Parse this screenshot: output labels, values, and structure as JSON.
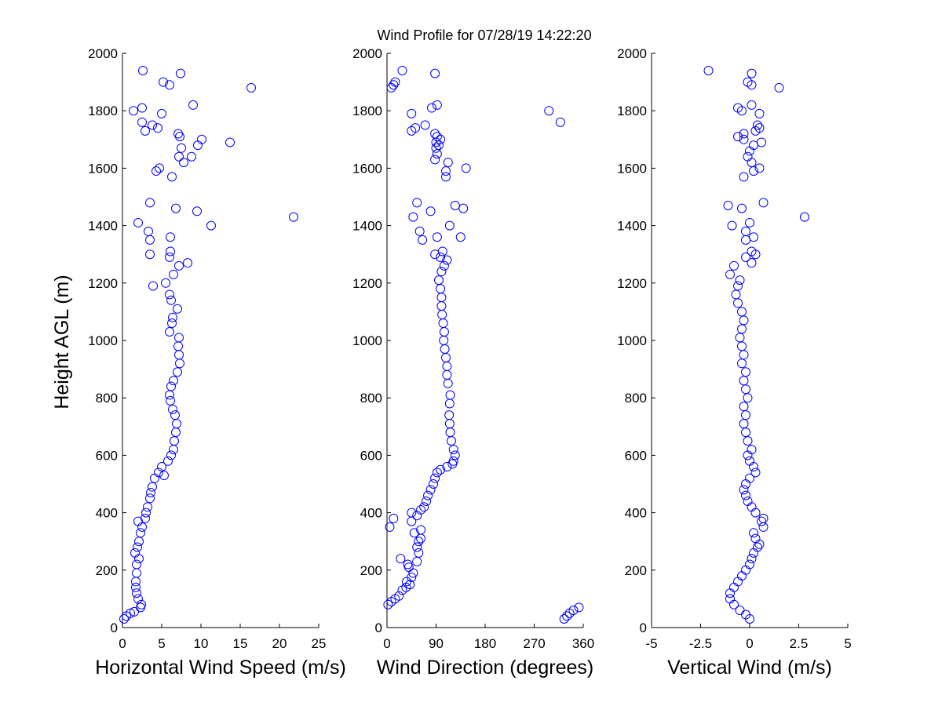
{
  "page": {
    "title": "Wind Profile for  07/28/19 14:22:20",
    "ylabel": "Height AGL (m)"
  },
  "colors": {
    "marker": "#0000ff",
    "axis": "#000000",
    "background": "#ffffff"
  },
  "chart_data": [
    {
      "type": "scatter",
      "title": "Wind Profile for  07/28/19 14:22:20",
      "xlabel": "Horizontal Wind Speed (m/s)",
      "ylabel": "Height AGL (m)",
      "xlim": [
        0,
        25
      ],
      "ylim": [
        0,
        2000
      ],
      "xticks": [
        0,
        5,
        10,
        15,
        20,
        25
      ],
      "xtick_labels": [
        "0",
        "5",
        "10",
        "15",
        "20",
        "25"
      ],
      "yticks": [
        0,
        200,
        400,
        600,
        800,
        1000,
        1200,
        1400,
        1600,
        1800,
        2000
      ],
      "ytick_labels": [
        "0",
        "200",
        "400",
        "600",
        "800",
        "1000",
        "1200",
        "1400",
        "1600",
        "1800",
        "2000"
      ],
      "grid": false,
      "marker": "open-circle",
      "points": [
        [
          0.2,
          30
        ],
        [
          0.5,
          40
        ],
        [
          1.0,
          50
        ],
        [
          1.5,
          55
        ],
        [
          2.3,
          70
        ],
        [
          2.4,
          80
        ],
        [
          2.0,
          100
        ],
        [
          1.8,
          120
        ],
        [
          1.7,
          140
        ],
        [
          1.7,
          160
        ],
        [
          1.8,
          190
        ],
        [
          1.8,
          220
        ],
        [
          2.1,
          240
        ],
        [
          1.6,
          260
        ],
        [
          1.9,
          280
        ],
        [
          2.1,
          300
        ],
        [
          2.3,
          330
        ],
        [
          2.5,
          350
        ],
        [
          2.0,
          370
        ],
        [
          2.9,
          380
        ],
        [
          3.0,
          400
        ],
        [
          3.2,
          420
        ],
        [
          3.5,
          450
        ],
        [
          3.6,
          470
        ],
        [
          3.8,
          490
        ],
        [
          4.1,
          520
        ],
        [
          4.6,
          540
        ],
        [
          5.0,
          560
        ],
        [
          5.3,
          530
        ],
        [
          5.8,
          580
        ],
        [
          6.2,
          600
        ],
        [
          6.5,
          620
        ],
        [
          6.6,
          650
        ],
        [
          6.8,
          680
        ],
        [
          6.9,
          710
        ],
        [
          6.7,
          740
        ],
        [
          6.4,
          760
        ],
        [
          6.1,
          790
        ],
        [
          6.0,
          810
        ],
        [
          6.2,
          840
        ],
        [
          6.5,
          860
        ],
        [
          7.0,
          890
        ],
        [
          7.3,
          920
        ],
        [
          7.2,
          950
        ],
        [
          7.1,
          980
        ],
        [
          7.2,
          1010
        ],
        [
          6.0,
          1030
        ],
        [
          6.3,
          1060
        ],
        [
          6.4,
          1080
        ],
        [
          7.0,
          1110
        ],
        [
          6.2,
          1140
        ],
        [
          6.0,
          1160
        ],
        [
          5.5,
          1200
        ],
        [
          6.5,
          1230
        ],
        [
          7.2,
          1260
        ],
        [
          8.3,
          1270
        ],
        [
          6.0,
          1290
        ],
        [
          6.1,
          1310
        ],
        [
          6.1,
          1360
        ],
        [
          3.5,
          1300
        ],
        [
          3.5,
          1350
        ],
        [
          3.3,
          1380
        ],
        [
          2.0,
          1410
        ],
        [
          11.3,
          1400
        ],
        [
          21.8,
          1430
        ],
        [
          9.5,
          1450
        ],
        [
          6.8,
          1460
        ],
        [
          3.5,
          1480
        ],
        [
          3.9,
          1190
        ],
        [
          6.3,
          1570
        ],
        [
          4.3,
          1590
        ],
        [
          4.7,
          1600
        ],
        [
          7.8,
          1620
        ],
        [
          7.2,
          1640
        ],
        [
          8.8,
          1640
        ],
        [
          7.5,
          1670
        ],
        [
          9.6,
          1680
        ],
        [
          13.7,
          1690
        ],
        [
          10.1,
          1700
        ],
        [
          7.3,
          1710
        ],
        [
          7.1,
          1720
        ],
        [
          2.9,
          1730
        ],
        [
          4.5,
          1740
        ],
        [
          2.5,
          1760
        ],
        [
          3.8,
          1750
        ],
        [
          5.0,
          1790
        ],
        [
          1.4,
          1800
        ],
        [
          2.5,
          1810
        ],
        [
          9.0,
          1820
        ],
        [
          16.4,
          1880
        ],
        [
          6.0,
          1890
        ],
        [
          5.2,
          1900
        ],
        [
          7.4,
          1930
        ],
        [
          2.6,
          1940
        ]
      ]
    },
    {
      "type": "scatter",
      "xlabel": "Wind Direction (degrees)",
      "ylabel": "",
      "xlim": [
        0,
        360
      ],
      "ylim": [
        0,
        2000
      ],
      "xticks": [
        0,
        90,
        180,
        270,
        360
      ],
      "xtick_labels": [
        "0",
        "90",
        "180",
        "270",
        "360"
      ],
      "yticks": [
        0,
        200,
        400,
        600,
        800,
        1000,
        1200,
        1400,
        1600,
        1800,
        2000
      ],
      "ytick_labels": [
        "0",
        "200",
        "400",
        "600",
        "800",
        "1000",
        "1200",
        "1400",
        "1600",
        "1800",
        "2000"
      ],
      "grid": false,
      "marker": "open-circle",
      "points": [
        [
          325,
          30
        ],
        [
          330,
          40
        ],
        [
          335,
          50
        ],
        [
          342,
          60
        ],
        [
          352,
          70
        ],
        [
          2,
          80
        ],
        [
          8,
          90
        ],
        [
          15,
          100
        ],
        [
          22,
          110
        ],
        [
          28,
          130
        ],
        [
          35,
          140
        ],
        [
          42,
          150
        ],
        [
          36,
          160
        ],
        [
          45,
          175
        ],
        [
          48,
          190
        ],
        [
          40,
          210
        ],
        [
          38,
          220
        ],
        [
          55,
          230
        ],
        [
          25,
          240
        ],
        [
          58,
          260
        ],
        [
          55,
          280
        ],
        [
          58,
          300
        ],
        [
          62,
          310
        ],
        [
          50,
          330
        ],
        [
          62,
          340
        ],
        [
          5,
          350
        ],
        [
          45,
          370
        ],
        [
          12,
          380
        ],
        [
          55,
          390
        ],
        [
          45,
          400
        ],
        [
          62,
          410
        ],
        [
          68,
          420
        ],
        [
          72,
          440
        ],
        [
          75,
          460
        ],
        [
          80,
          480
        ],
        [
          85,
          500
        ],
        [
          88,
          520
        ],
        [
          92,
          540
        ],
        [
          98,
          550
        ],
        [
          110,
          560
        ],
        [
          120,
          570
        ],
        [
          122,
          580
        ],
        [
          125,
          600
        ],
        [
          122,
          620
        ],
        [
          118,
          650
        ],
        [
          116,
          680
        ],
        [
          115,
          710
        ],
        [
          114,
          740
        ],
        [
          115,
          780
        ],
        [
          116,
          810
        ],
        [
          112,
          850
        ],
        [
          110,
          880
        ],
        [
          110,
          910
        ],
        [
          108,
          940
        ],
        [
          106,
          970
        ],
        [
          104,
          1000
        ],
        [
          105,
          1030
        ],
        [
          103,
          1060
        ],
        [
          101,
          1090
        ],
        [
          100,
          1120
        ],
        [
          100,
          1150
        ],
        [
          98,
          1180
        ],
        [
          95,
          1210
        ],
        [
          100,
          1240
        ],
        [
          105,
          1260
        ],
        [
          110,
          1280
        ],
        [
          102,
          1310
        ],
        [
          88,
          1300
        ],
        [
          98,
          1290
        ],
        [
          65,
          1350
        ],
        [
          60,
          1380
        ],
        [
          115,
          1400
        ],
        [
          48,
          1430
        ],
        [
          80,
          1450
        ],
        [
          140,
          1460
        ],
        [
          125,
          1470
        ],
        [
          55,
          1480
        ],
        [
          92,
          1360
        ],
        [
          135,
          1360
        ],
        [
          108,
          1570
        ],
        [
          108,
          1590
        ],
        [
          145,
          1600
        ],
        [
          112,
          1620
        ],
        [
          88,
          1630
        ],
        [
          92,
          1650
        ],
        [
          90,
          1670
        ],
        [
          95,
          1680
        ],
        [
          90,
          1690
        ],
        [
          98,
          1700
        ],
        [
          92,
          1710
        ],
        [
          88,
          1720
        ],
        [
          45,
          1730
        ],
        [
          52,
          1740
        ],
        [
          70,
          1750
        ],
        [
          45,
          1790
        ],
        [
          297,
          1800
        ],
        [
          82,
          1810
        ],
        [
          92,
          1820
        ],
        [
          318,
          1760
        ],
        [
          8,
          1880
        ],
        [
          15,
          1900
        ],
        [
          12,
          1890
        ],
        [
          88,
          1930
        ],
        [
          28,
          1940
        ]
      ]
    },
    {
      "type": "scatter",
      "xlabel": "Vertical Wind (m/s)",
      "ylabel": "",
      "xlim": [
        -5,
        5
      ],
      "ylim": [
        0,
        2000
      ],
      "xticks": [
        -5,
        -2.5,
        0,
        2.5,
        5
      ],
      "xtick_labels": [
        "-5",
        "-2.5",
        "0",
        "2.5",
        "5"
      ],
      "yticks": [
        0,
        200,
        400,
        600,
        800,
        1000,
        1200,
        1400,
        1600,
        1800,
        2000
      ],
      "ytick_labels": [
        "0",
        "200",
        "400",
        "600",
        "800",
        "1000",
        "1200",
        "1400",
        "1600",
        "1800",
        "2000"
      ],
      "grid": false,
      "marker": "open-circle",
      "points": [
        [
          0.0,
          30
        ],
        [
          -0.2,
          45
        ],
        [
          -0.5,
          60
        ],
        [
          -0.8,
          80
        ],
        [
          -1.0,
          100
        ],
        [
          -1.0,
          120
        ],
        [
          -0.8,
          140
        ],
        [
          -0.6,
          160
        ],
        [
          -0.4,
          180
        ],
        [
          -0.2,
          200
        ],
        [
          0.0,
          220
        ],
        [
          0.1,
          240
        ],
        [
          0.2,
          260
        ],
        [
          0.4,
          280
        ],
        [
          0.5,
          290
        ],
        [
          0.3,
          310
        ],
        [
          0.2,
          330
        ],
        [
          0.7,
          350
        ],
        [
          0.6,
          370
        ],
        [
          0.7,
          380
        ],
        [
          0.3,
          400
        ],
        [
          0.1,
          420
        ],
        [
          -0.1,
          440
        ],
        [
          -0.2,
          460
        ],
        [
          -0.3,
          480
        ],
        [
          -0.2,
          500
        ],
        [
          0.0,
          520
        ],
        [
          0.3,
          540
        ],
        [
          0.2,
          560
        ],
        [
          0.0,
          580
        ],
        [
          -0.1,
          600
        ],
        [
          0.1,
          620
        ],
        [
          -0.1,
          650
        ],
        [
          -0.2,
          680
        ],
        [
          -0.3,
          710
        ],
        [
          -0.2,
          740
        ],
        [
          -0.3,
          770
        ],
        [
          -0.1,
          800
        ],
        [
          -0.2,
          830
        ],
        [
          -0.3,
          860
        ],
        [
          -0.2,
          890
        ],
        [
          -0.4,
          920
        ],
        [
          -0.3,
          950
        ],
        [
          -0.4,
          980
        ],
        [
          -0.5,
          1010
        ],
        [
          -0.4,
          1040
        ],
        [
          -0.3,
          1070
        ],
        [
          -0.4,
          1100
        ],
        [
          -0.6,
          1130
        ],
        [
          -0.7,
          1160
        ],
        [
          -0.6,
          1190
        ],
        [
          -0.5,
          1210
        ],
        [
          -1.0,
          1230
        ],
        [
          -0.8,
          1260
        ],
        [
          0.1,
          1270
        ],
        [
          -0.2,
          1290
        ],
        [
          0.3,
          1300
        ],
        [
          0.1,
          1310
        ],
        [
          -0.2,
          1350
        ],
        [
          0.2,
          1360
        ],
        [
          -0.2,
          1380
        ],
        [
          -0.9,
          1400
        ],
        [
          0.0,
          1410
        ],
        [
          2.8,
          1430
        ],
        [
          -0.4,
          1460
        ],
        [
          -1.1,
          1470
        ],
        [
          0.7,
          1480
        ],
        [
          -0.3,
          1570
        ],
        [
          0.2,
          1590
        ],
        [
          0.5,
          1600
        ],
        [
          0.1,
          1620
        ],
        [
          -0.1,
          1640
        ],
        [
          0.0,
          1660
        ],
        [
          0.2,
          1680
        ],
        [
          0.6,
          1690
        ],
        [
          -0.3,
          1700
        ],
        [
          -0.6,
          1710
        ],
        [
          0.3,
          1730
        ],
        [
          0.5,
          1740
        ],
        [
          0.4,
          1750
        ],
        [
          -0.3,
          1720
        ],
        [
          0.5,
          1790
        ],
        [
          -0.4,
          1800
        ],
        [
          -0.6,
          1810
        ],
        [
          0.1,
          1820
        ],
        [
          1.5,
          1880
        ],
        [
          0.1,
          1890
        ],
        [
          -0.1,
          1900
        ],
        [
          0.1,
          1930
        ],
        [
          -2.1,
          1940
        ]
      ]
    }
  ]
}
